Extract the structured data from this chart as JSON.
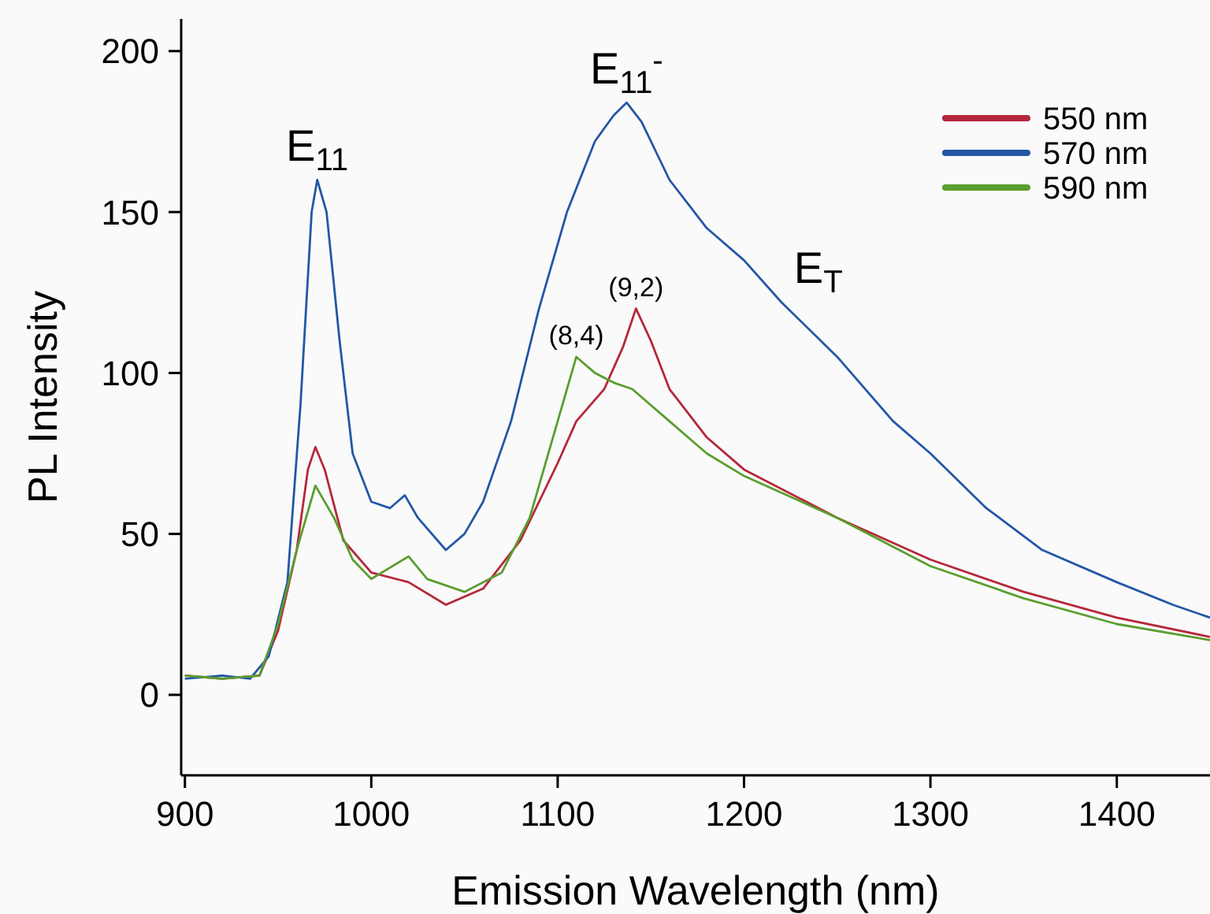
{
  "chart_data": {
    "type": "line",
    "xlabel": "Emission Wavelength (nm)",
    "ylabel": "PL Intensity",
    "xlim": [
      898,
      1450
    ],
    "ylim": [
      -25,
      210
    ],
    "xticks": [
      900,
      1000,
      1100,
      1200,
      1300,
      1400
    ],
    "yticks": [
      0,
      50,
      100,
      150,
      200
    ],
    "grid": false,
    "legend": "top right",
    "line_style": "solid",
    "marker": "none",
    "series": [
      {
        "name": "550 nm",
        "color": "#b5273a",
        "x": [
          900,
          920,
          940,
          950,
          960,
          966,
          970,
          975,
          985,
          1000,
          1020,
          1040,
          1060,
          1080,
          1100,
          1110,
          1125,
          1135,
          1142,
          1150,
          1160,
          1180,
          1200,
          1250,
          1300,
          1350,
          1400,
          1450
        ],
        "values": [
          6,
          5,
          6,
          20,
          45,
          70,
          77,
          70,
          48,
          38,
          35,
          28,
          33,
          48,
          72,
          85,
          95,
          108,
          120,
          110,
          95,
          80,
          70,
          55,
          42,
          32,
          24,
          18
        ]
      },
      {
        "name": "570 nm",
        "color": "#2457a6",
        "x": [
          900,
          920,
          935,
          945,
          955,
          962,
          968,
          971,
          976,
          983,
          990,
          1000,
          1010,
          1018,
          1025,
          1040,
          1050,
          1060,
          1075,
          1090,
          1105,
          1120,
          1130,
          1137,
          1145,
          1160,
          1180,
          1200,
          1220,
          1250,
          1280,
          1300,
          1330,
          1360,
          1400,
          1430,
          1450
        ],
        "values": [
          5,
          6,
          5,
          12,
          35,
          90,
          150,
          160,
          150,
          110,
          75,
          60,
          58,
          62,
          55,
          45,
          50,
          60,
          85,
          120,
          150,
          172,
          180,
          184,
          178,
          160,
          145,
          135,
          122,
          105,
          85,
          75,
          58,
          45,
          35,
          28,
          24
        ]
      },
      {
        "name": "590 nm",
        "color": "#5a9e2f",
        "x": [
          900,
          920,
          940,
          950,
          960,
          970,
          980,
          990,
          1000,
          1020,
          1030,
          1050,
          1070,
          1085,
          1100,
          1110,
          1120,
          1130,
          1140,
          1160,
          1180,
          1200,
          1250,
          1300,
          1350,
          1400,
          1450
        ],
        "values": [
          6,
          5,
          6,
          22,
          45,
          65,
          55,
          42,
          36,
          43,
          36,
          32,
          38,
          55,
          85,
          105,
          100,
          97,
          95,
          85,
          75,
          68,
          55,
          40,
          30,
          22,
          17
        ]
      }
    ],
    "annotations": [
      {
        "text": "E$_{11}$",
        "x": 971,
        "y": 160
      },
      {
        "text": "E$_{11}$$^{-}$",
        "x": 1137,
        "y": 184
      },
      {
        "text": "E$_{T}$",
        "x": 1220,
        "y": 122
      },
      {
        "text": "(8,4)",
        "x": 1110,
        "y": 105
      },
      {
        "text": "(9,2)",
        "x": 1142,
        "y": 120
      }
    ]
  }
}
